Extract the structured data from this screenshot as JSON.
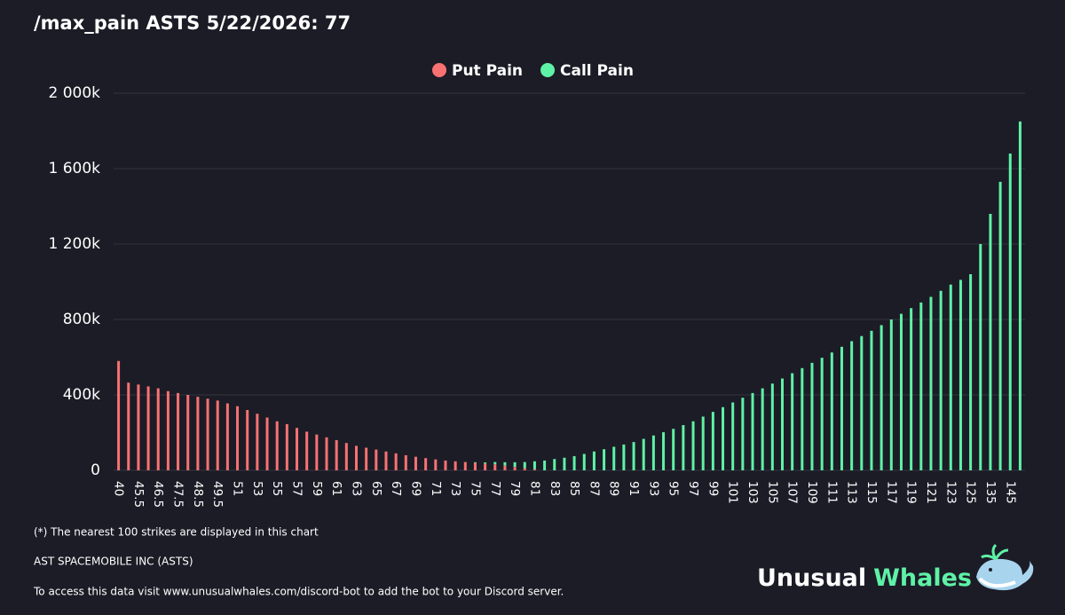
{
  "chart_data": {
    "type": "bar",
    "title": "/max_pain ASTS 5/22/2026: 77",
    "stacked": true,
    "categories": [
      "40",
      null,
      "45.5",
      null,
      "46.5",
      null,
      "47.5",
      null,
      "48.5",
      null,
      "49.5",
      null,
      "51",
      null,
      "53",
      null,
      "55",
      null,
      "57",
      null,
      "59",
      null,
      "61",
      null,
      "63",
      null,
      "65",
      null,
      "67",
      null,
      "69",
      null,
      "71",
      null,
      "73",
      null,
      "75",
      null,
      "77",
      null,
      "79",
      null,
      "81",
      null,
      "83",
      null,
      "85",
      null,
      "87",
      null,
      "89",
      null,
      "91",
      null,
      "93",
      null,
      "95",
      null,
      "97",
      null,
      "99",
      null,
      "101",
      null,
      "103",
      null,
      "105",
      null,
      "107",
      null,
      "109",
      null,
      "111",
      null,
      "113",
      null,
      "115",
      null,
      "117",
      null,
      "119",
      null,
      "121",
      null,
      "123",
      null,
      "125",
      null,
      "135",
      null,
      "145",
      null
    ],
    "series": [
      {
        "name": "Put Pain",
        "color": "#f87272",
        "values": [
          580,
          465,
          455,
          445,
          435,
          420,
          410,
          400,
          390,
          380,
          370,
          355,
          340,
          320,
          300,
          280,
          260,
          245,
          225,
          205,
          190,
          175,
          160,
          145,
          130,
          120,
          110,
          100,
          90,
          80,
          72,
          65,
          58,
          52,
          48,
          44,
          40,
          36,
          32,
          25,
          18,
          12,
          6,
          0,
          0,
          0,
          0,
          0,
          0,
          0,
          0,
          0,
          0,
          0,
          0,
          0,
          0,
          0,
          0,
          0,
          0,
          0,
          0,
          0,
          0,
          0,
          0,
          0,
          0,
          0,
          0,
          0,
          0,
          0,
          0,
          0,
          0,
          0,
          0,
          0,
          0,
          0,
          0,
          0,
          0,
          0,
          0,
          0,
          0,
          0,
          0,
          0
        ]
      },
      {
        "name": "Call Pain",
        "color": "#5ef2a6",
        "values": [
          0,
          0,
          0,
          0,
          0,
          0,
          0,
          0,
          0,
          0,
          0,
          0,
          0,
          0,
          0,
          0,
          0,
          0,
          0,
          0,
          0,
          0,
          0,
          0,
          0,
          0,
          0,
          0,
          0,
          0,
          0,
          0,
          0,
          0,
          0,
          0,
          3,
          6,
          12,
          18,
          25,
          32,
          42,
          52,
          60,
          67,
          75,
          87,
          100,
          112,
          125,
          137,
          150,
          167,
          185,
          202,
          220,
          240,
          260,
          285,
          310,
          335,
          360,
          385,
          410,
          435,
          460,
          487,
          515,
          542,
          570,
          597,
          625,
          655,
          685,
          712,
          740,
          770,
          800,
          830,
          860,
          890,
          920,
          952,
          985,
          1010,
          1040,
          1200,
          1360,
          1530,
          1680,
          1850
        ]
      }
    ],
    "ylim": [
      0,
      2000
    ],
    "yticks": [
      0,
      {
        "value": 400,
        "label": "400k"
      },
      {
        "value": 800,
        "label": "800k"
      },
      {
        "value": 1200,
        "label": "1 200k"
      },
      {
        "value": 1600,
        "label": "1 600k"
      },
      {
        "value": 2000,
        "label": "2 000k"
      }
    ],
    "grid": true,
    "legend": "top"
  },
  "footer": {
    "note": "(*) The nearest 100 strikes are displayed in this chart",
    "company": "AST SPACEMOBILE INC (ASTS)",
    "access": "To access this data visit www.unusualwhales.com/discord-bot to add the bot to your Discord server."
  },
  "logo": {
    "first": "Unusual",
    "second": "Whales"
  }
}
